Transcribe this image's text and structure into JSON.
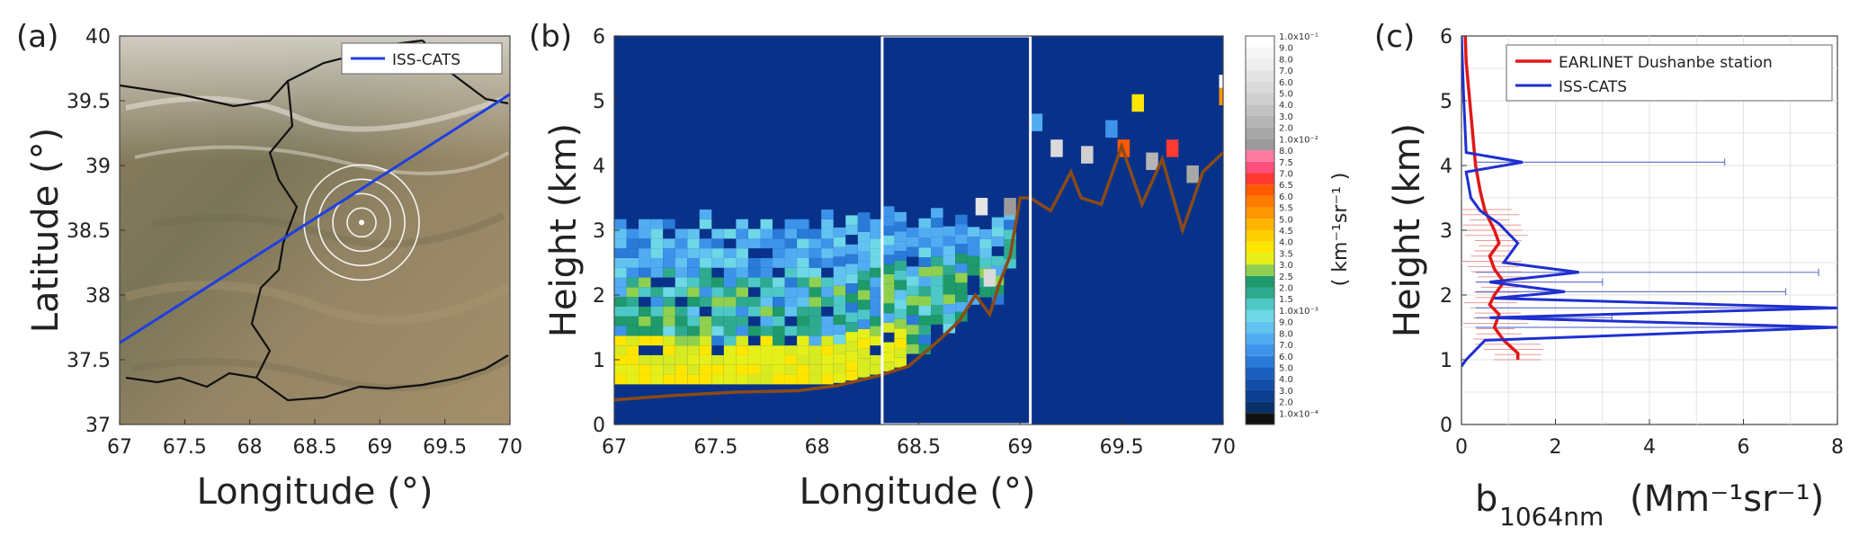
{
  "chart_data": [
    {
      "panel": "(a)",
      "type": "map",
      "xlabel": "Longitude (°)",
      "ylabel": "Latitude (°)",
      "xlim": [
        67,
        70
      ],
      "ylim": [
        37,
        40
      ],
      "xticks": [
        "67",
        "67.5",
        "68",
        "68.5",
        "69",
        "69.5",
        "70"
      ],
      "yticks": [
        "37",
        "37.5",
        "38",
        "38.5",
        "39",
        "39.5",
        "40"
      ],
      "legend": [
        "ISS-CATS"
      ],
      "legend_position": "top-right",
      "series": [
        {
          "name": "ISS-CATS",
          "x": [
            67,
            70
          ],
          "y": [
            37.63,
            39.55
          ],
          "color": "#1f3fe0"
        }
      ],
      "station": {
        "lon": 68.86,
        "lat": 38.56
      },
      "range_rings": 4
    },
    {
      "panel": "(b)",
      "type": "heatmap",
      "xlabel": "Longitude (°)",
      "ylabel": "Height (km)",
      "xlim": [
        67,
        70
      ],
      "ylim": [
        0,
        6
      ],
      "xticks": [
        "67",
        "67.5",
        "68",
        "68.5",
        "69",
        "69.5",
        "70"
      ],
      "yticks": [
        "0",
        "1",
        "2",
        "3",
        "4",
        "5",
        "6"
      ],
      "colorbar_unit": "( km⁻¹sr⁻¹ )",
      "colorbar_labels": [
        "1.0x10⁻⁴",
        "2.0",
        "3.0",
        "4.0",
        "5.0",
        "6.0",
        "7.0",
        "8.0",
        "9.0",
        "1.0x10⁻³",
        "1.5",
        "2.0",
        "2.5",
        "3.0",
        "3.5",
        "4.0",
        "4.5",
        "5.0",
        "5.5",
        "6.0",
        "6.5",
        "7.0",
        "7.5",
        "8.0",
        "1.0x10⁻²",
        "2.0",
        "3.0",
        "4.0",
        "5.0",
        "6.0",
        "7.0",
        "8.0",
        "9.0",
        "1.0x10⁻¹"
      ],
      "colorbar_colors": [
        "#08306b",
        "#0b3d91",
        "#124ea8",
        "#1a5fc0",
        "#2a7ad8",
        "#3d93ea",
        "#52acf2",
        "#62c3f0",
        "#6ed8e6",
        "#4ec8c6",
        "#2eab8e",
        "#1f9a6a",
        "#8fd14f",
        "#e6f018",
        "#ffe600",
        "#ffd000",
        "#ffb400",
        "#ff9600",
        "#ff7a00",
        "#ff5a00",
        "#ff3a30",
        "#ff4f7a",
        "#ff7aa0",
        "#9b9b9b",
        "#a8a8a8",
        "#b5b5b5",
        "#c2c2c2",
        "#cfcfcf",
        "#dadada",
        "#e4e4e4",
        "#eeeeee",
        "#f6f6f6",
        "#ffffff"
      ],
      "highlight_box": {
        "x": [
          68.32,
          69.05
        ],
        "y": [
          0,
          6
        ]
      },
      "surface_line": {
        "x": [
          67.0,
          67.3,
          67.6,
          67.9,
          68.1,
          68.3,
          68.45,
          68.6,
          68.7,
          68.78,
          68.85,
          68.9,
          68.95,
          69.0,
          69.05,
          69.15,
          69.25,
          69.3,
          69.4,
          69.5,
          69.6,
          69.7,
          69.8,
          69.9,
          70.0
        ],
        "y": [
          0.38,
          0.45,
          0.5,
          0.52,
          0.6,
          0.75,
          0.9,
          1.3,
          1.6,
          2.0,
          1.7,
          2.2,
          2.6,
          3.5,
          3.5,
          3.3,
          3.9,
          3.5,
          3.4,
          4.3,
          3.4,
          4.1,
          3.0,
          3.9,
          4.2
        ]
      }
    },
    {
      "panel": "(c)",
      "type": "line",
      "xlabel": "b",
      "xlabel_sub": "1064nm",
      "xlabel_units": "(Mm⁻¹sr⁻¹)",
      "ylabel": "Height (km)",
      "xlim": [
        0,
        8
      ],
      "ylim": [
        0,
        6
      ],
      "xticks": [
        "0",
        "2",
        "4",
        "6",
        "8"
      ],
      "yticks": [
        "0",
        "1",
        "2",
        "3",
        "4",
        "5",
        "6"
      ],
      "legend_position": "top-right",
      "series": [
        {
          "name": "EARLINET Dushanbe station",
          "color": "#e01818",
          "x": [
            1.2,
            1.2,
            0.9,
            0.7,
            0.8,
            0.6,
            0.7,
            0.9,
            0.7,
            0.6,
            0.8,
            0.7,
            0.5,
            0.4,
            0.3,
            0.25,
            0.2,
            0.15,
            0.1,
            0.08
          ],
          "y": [
            1.0,
            1.1,
            1.3,
            1.5,
            1.7,
            1.85,
            2.0,
            2.2,
            2.4,
            2.6,
            2.8,
            3.0,
            3.3,
            3.6,
            4.0,
            4.4,
            4.8,
            5.2,
            5.6,
            6.0
          ]
        },
        {
          "name": "ISS-CATS",
          "color": "#1f2fd0",
          "x": [
            0,
            0.1,
            0.5,
            8,
            0.6,
            8,
            0.7,
            2.2,
            0.6,
            2.5,
            0.9,
            1.2,
            0.8,
            0.4,
            0.2,
            0.1,
            1.3,
            0.1,
            0.05,
            0
          ],
          "y": [
            0.9,
            1.0,
            1.3,
            1.5,
            1.65,
            1.8,
            1.95,
            2.05,
            2.2,
            2.35,
            2.5,
            2.8,
            3.1,
            3.3,
            3.5,
            3.9,
            4.05,
            4.2,
            5.0,
            6.0
          ]
        }
      ]
    }
  ]
}
